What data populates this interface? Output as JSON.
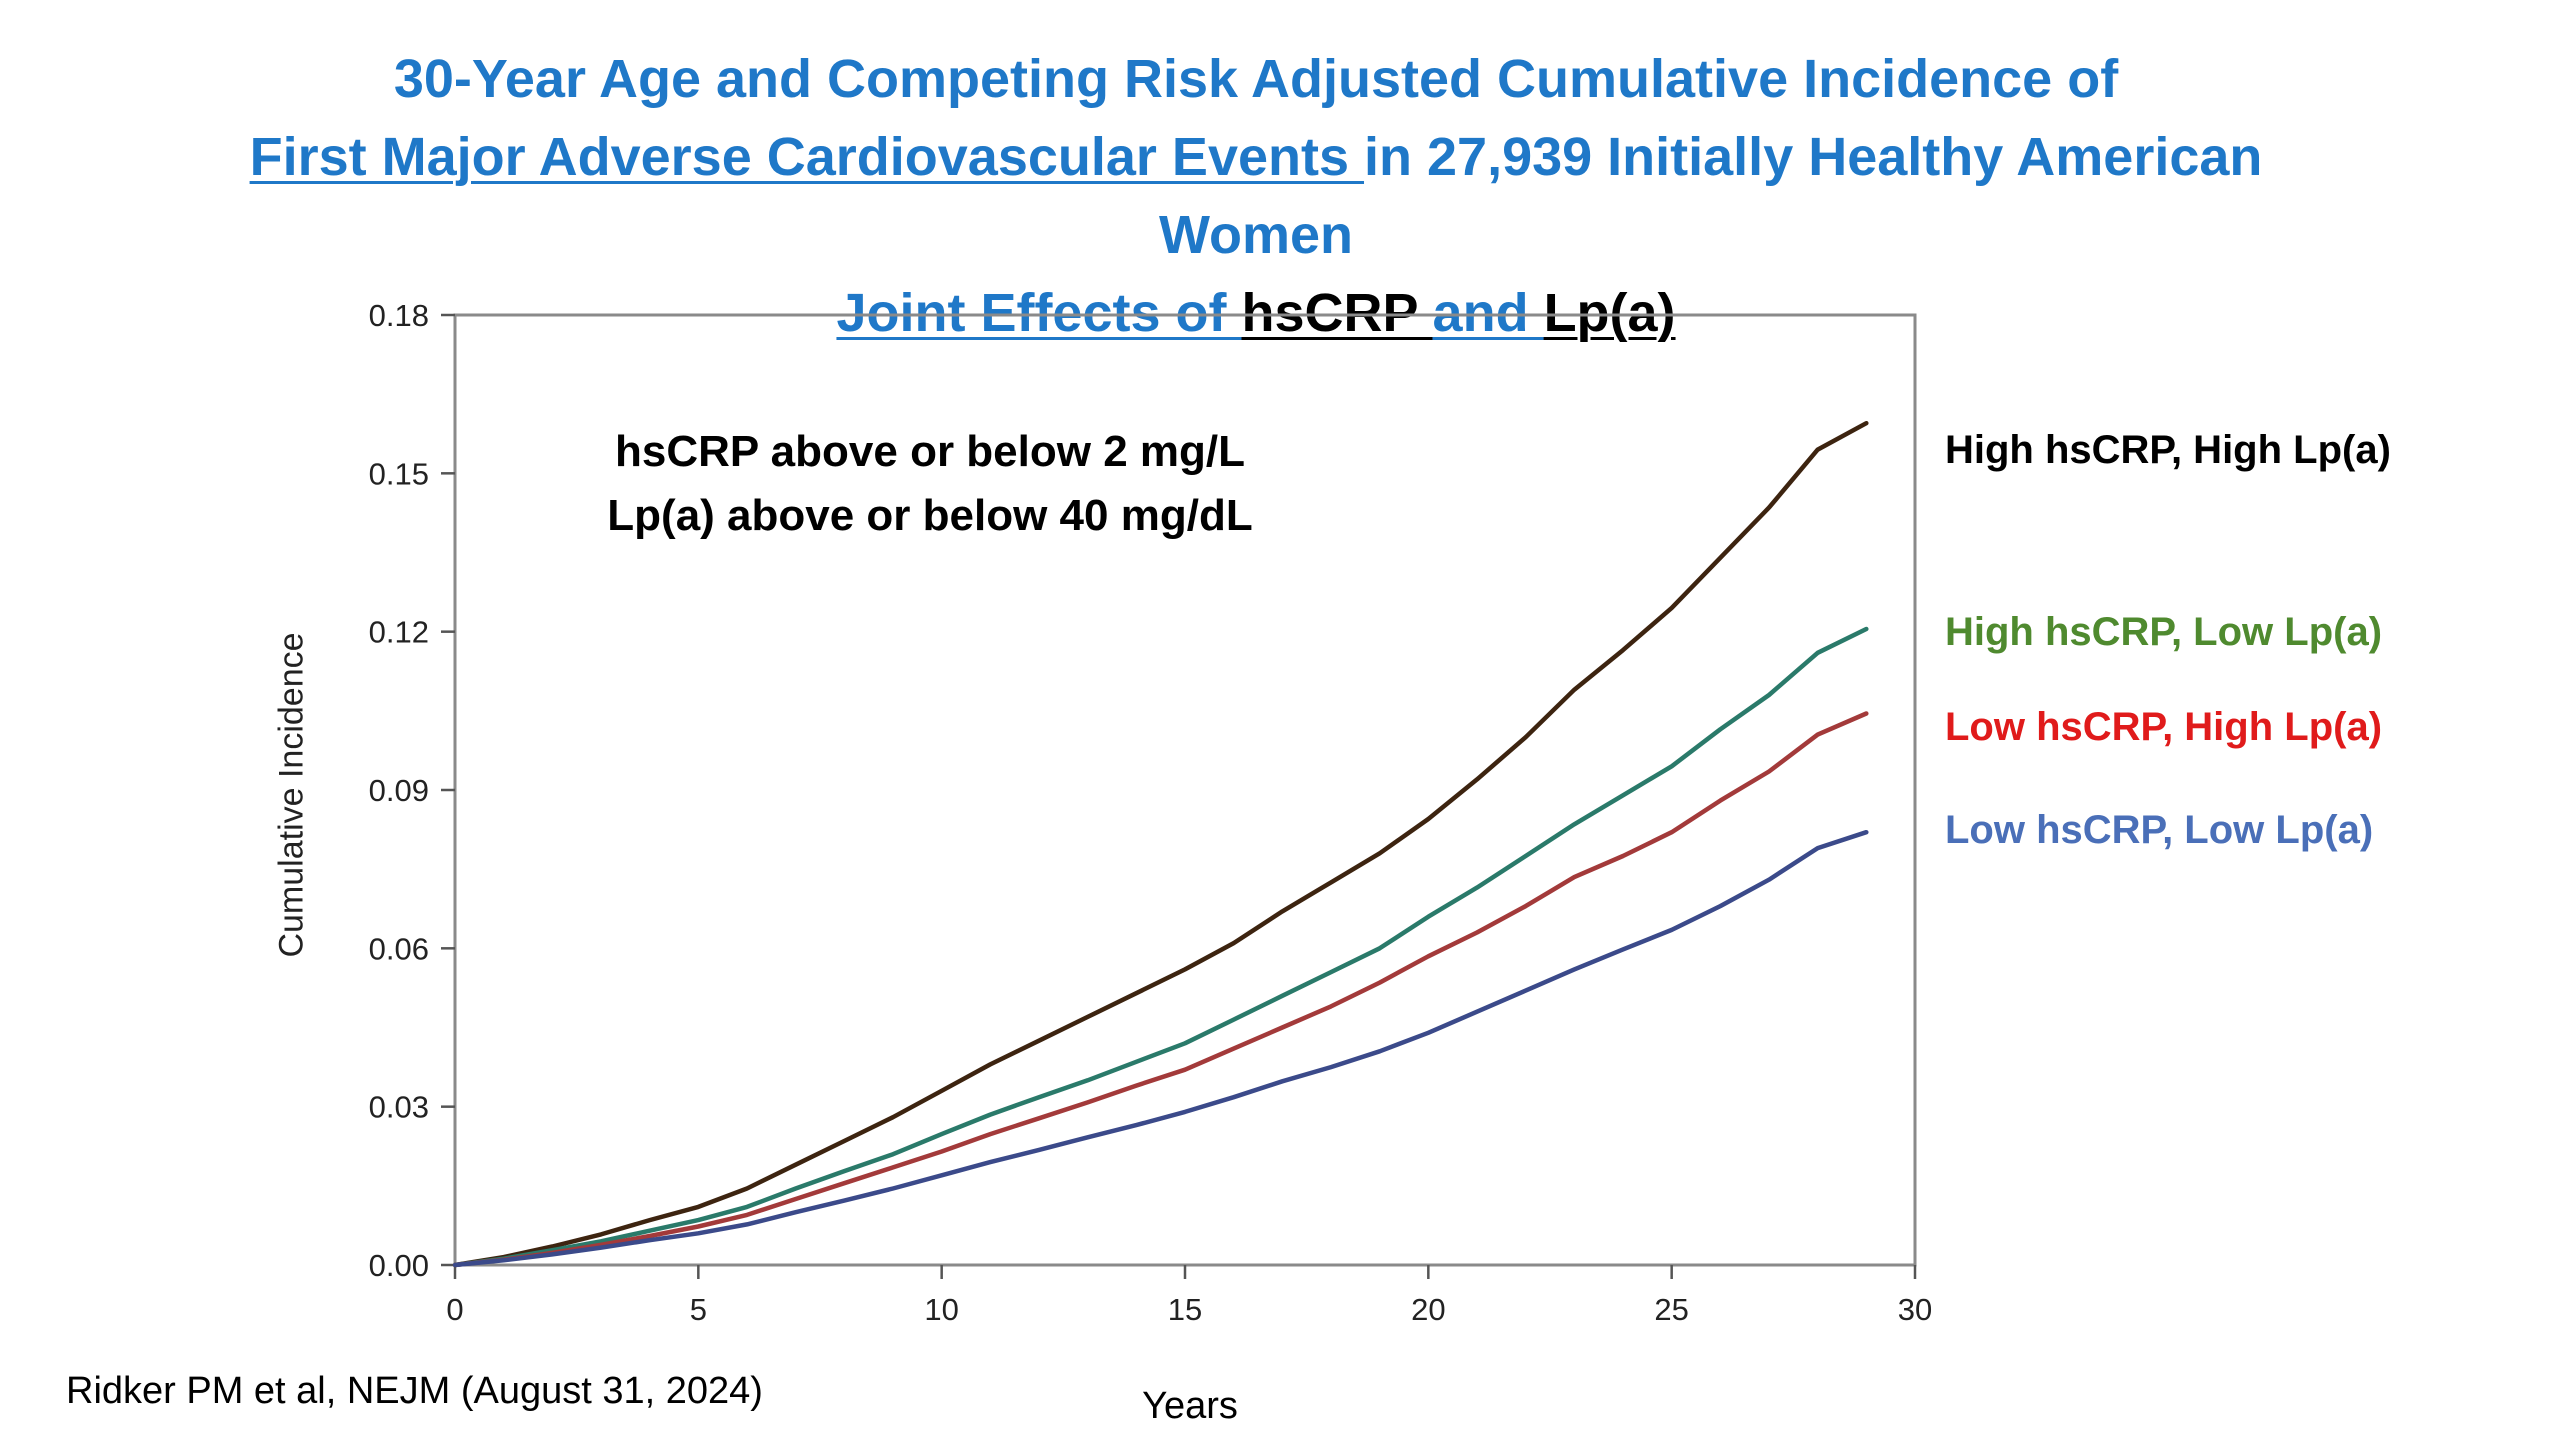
{
  "title": {
    "line1": "30-Year Age and Competing Risk Adjusted Cumulative Incidence of",
    "line2_underlined": "First Major Adverse Cardiovascular Events ",
    "line2_rest": "in 27,939 Initially Healthy American",
    "line3": "Women",
    "line4_a": "Joint Effects of ",
    "line4_b": "hsCRP ",
    "line4_c": "and ",
    "line4_d": "Lp(a)"
  },
  "annotation": {
    "line1": "hsCRP above or below 2 mg/L",
    "line2": "Lp(a) above or below 40 mg/dL"
  },
  "citation": "Ridker PM et al, NEJM (August 31, 2024)",
  "chart_data": {
    "type": "line",
    "xlabel": "Years",
    "ylabel": "Cumulative Incidence",
    "xlim": [
      0,
      30
    ],
    "ylim": [
      0,
      0.18
    ],
    "xticks": [
      0,
      5,
      10,
      15,
      20,
      25,
      30
    ],
    "yticks": [
      0.0,
      0.03,
      0.06,
      0.09,
      0.12,
      0.15,
      0.18
    ],
    "xtick_labels": [
      "0",
      "5",
      "10",
      "15",
      "20",
      "25",
      "30"
    ],
    "ytick_labels": [
      "0.00",
      "0.03",
      "0.06",
      "0.09",
      "0.12",
      "0.15",
      "0.18"
    ],
    "grid": false,
    "legend_placement": "right",
    "x": [
      0,
      1,
      2,
      3,
      4,
      5,
      6,
      7,
      8,
      9,
      10,
      11,
      12,
      13,
      14,
      15,
      16,
      17,
      18,
      19,
      20,
      21,
      22,
      23,
      24,
      25,
      26,
      27,
      28,
      29
    ],
    "series": [
      {
        "name": "High hsCRP, High Lp(a)",
        "color": "#3d2410",
        "values": [
          0,
          0.0015,
          0.0035,
          0.0058,
          0.0085,
          0.011,
          0.0145,
          0.019,
          0.0235,
          0.028,
          0.033,
          0.038,
          0.0425,
          0.047,
          0.0515,
          0.056,
          0.061,
          0.067,
          0.0725,
          0.078,
          0.0845,
          0.092,
          0.1,
          0.109,
          0.1165,
          0.1245,
          0.134,
          0.1435,
          0.1545,
          0.1595
        ]
      },
      {
        "name": "High hsCRP, Low Lp(a)",
        "color": "#2a7a6a",
        "values": [
          0,
          0.0012,
          0.0028,
          0.0045,
          0.0065,
          0.0085,
          0.011,
          0.0145,
          0.0178,
          0.021,
          0.0248,
          0.0285,
          0.0318,
          0.035,
          0.0385,
          0.042,
          0.0465,
          0.051,
          0.0555,
          0.06,
          0.066,
          0.0715,
          0.0775,
          0.0835,
          0.089,
          0.0945,
          0.1015,
          0.108,
          0.116,
          0.1205
        ]
      },
      {
        "name": "Low hsCRP, High Lp(a)",
        "color": "#a33a3a",
        "values": [
          0,
          0.001,
          0.0023,
          0.0038,
          0.0055,
          0.0073,
          0.0095,
          0.0125,
          0.0155,
          0.0185,
          0.0215,
          0.0248,
          0.0278,
          0.0308,
          0.034,
          0.037,
          0.041,
          0.045,
          0.049,
          0.0535,
          0.0585,
          0.063,
          0.068,
          0.0735,
          0.0775,
          0.082,
          0.088,
          0.0935,
          0.1005,
          0.1045
        ]
      },
      {
        "name": "Low hsCRP, Low Lp(a)",
        "color": "#3b4a8a",
        "values": [
          0,
          0.0009,
          0.002,
          0.0033,
          0.0047,
          0.006,
          0.0077,
          0.01,
          0.0122,
          0.0145,
          0.017,
          0.0195,
          0.0218,
          0.0242,
          0.0265,
          0.029,
          0.0318,
          0.0348,
          0.0375,
          0.0405,
          0.044,
          0.048,
          0.052,
          0.056,
          0.0598,
          0.0635,
          0.068,
          0.073,
          0.079,
          0.082
        ]
      }
    ]
  },
  "legend": {
    "items": [
      {
        "label": "High hsCRP, High Lp(a)",
        "color": "#000000"
      },
      {
        "label": "High hsCRP, Low Lp(a)",
        "color": "#4f8a2f"
      },
      {
        "label": "Low hsCRP, High Lp(a)",
        "color": "#e01b1b"
      },
      {
        "label": "Low hsCRP, Low Lp(a)",
        "color": "#4a6fb8"
      }
    ]
  }
}
